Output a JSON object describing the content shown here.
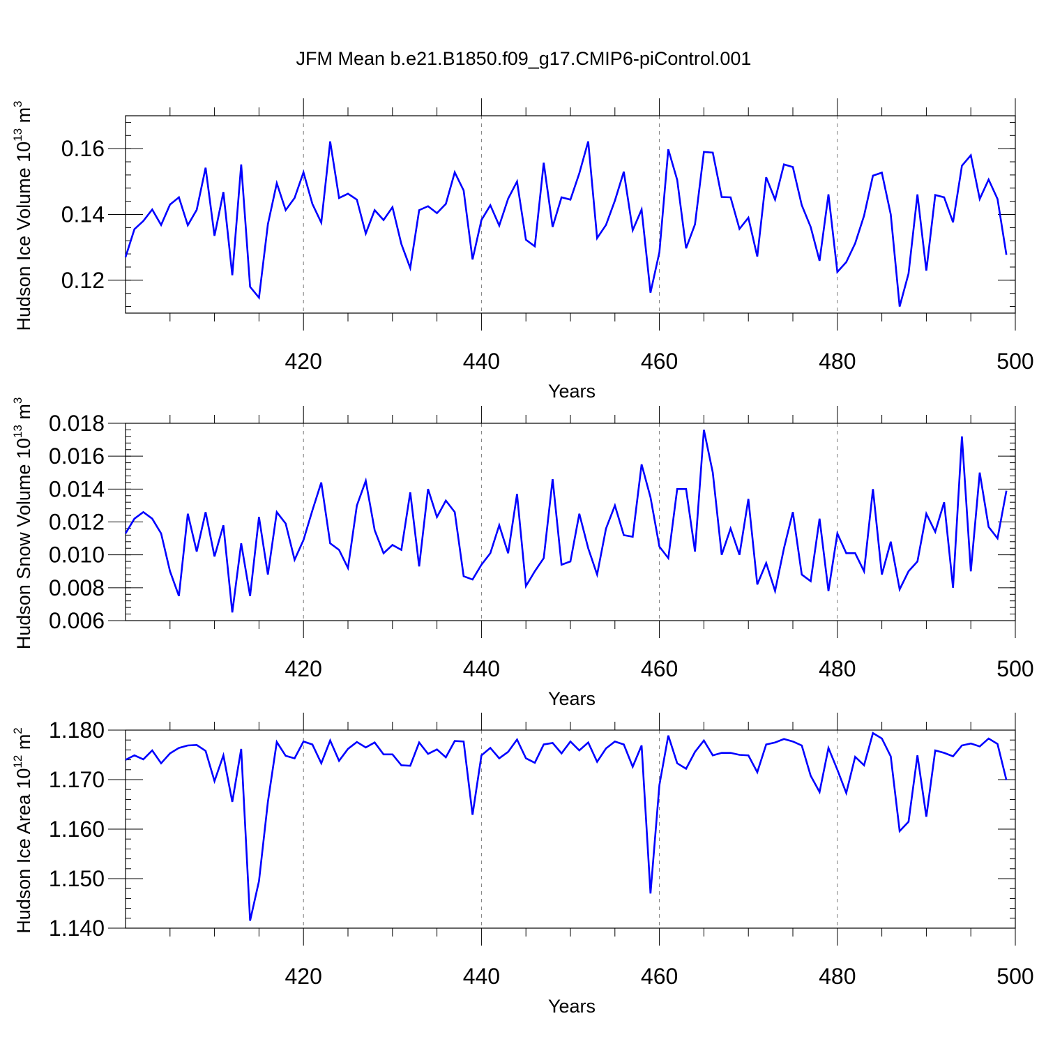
{
  "title": "JFM Mean b.e21.B1850.f09_g17.CMIP6-piControl.001",
  "colors": {
    "series": "#0000ff",
    "axis": "#000000",
    "grid": "#7a7a7a",
    "background": "#ffffff"
  },
  "chart_data": [
    {
      "type": "line",
      "ylabel": "Hudson Ice Volume 10",
      "ylabel_exp": "13",
      "ylabel_unit": " m",
      "ylabel_unit_exp": "3",
      "xlabel": "Years",
      "xlim": [
        400,
        500
      ],
      "ylim": [
        0.11,
        0.17
      ],
      "yticks": [
        0.12,
        0.14,
        0.16
      ],
      "ytick_labels": [
        "0.12",
        "0.14",
        "0.16"
      ],
      "xticks": [
        420,
        440,
        460,
        480,
        500
      ],
      "xtick_labels": [
        "420",
        "440",
        "460",
        "480",
        "500"
      ],
      "grid": "vertical dashed at major x ticks",
      "x_start": 400,
      "values": [
        0.127,
        0.1355,
        0.138,
        0.1415,
        0.1368,
        0.143,
        0.1452,
        0.1367,
        0.1414,
        0.1542,
        0.1335,
        0.1468,
        0.1215,
        0.1552,
        0.118,
        0.1147,
        0.137,
        0.1495,
        0.1413,
        0.145,
        0.1528,
        0.1432,
        0.1375,
        0.1622,
        0.145,
        0.1463,
        0.1445,
        0.1342,
        0.1413,
        0.1383,
        0.1422,
        0.131,
        0.1237,
        0.1413,
        0.1425,
        0.1404,
        0.1432,
        0.1528,
        0.1473,
        0.1263,
        0.1383,
        0.1428,
        0.1366,
        0.1448,
        0.15,
        0.1323,
        0.1303,
        0.1557,
        0.1362,
        0.1452,
        0.1445,
        0.1525,
        0.1622,
        0.1328,
        0.1368,
        0.1442,
        0.153,
        0.1352,
        0.1415,
        0.1162,
        0.1285,
        0.1598,
        0.1505,
        0.1297,
        0.137,
        0.159,
        0.1588,
        0.1453,
        0.1452,
        0.1356,
        0.139,
        0.1272,
        0.1513,
        0.1445,
        0.1552,
        0.1544,
        0.1428,
        0.1362,
        0.1259,
        0.1461,
        0.1225,
        0.1255,
        0.1312,
        0.1396,
        0.1518,
        0.1527,
        0.14,
        0.112,
        0.122,
        0.1461,
        0.1229,
        0.1459,
        0.1452,
        0.1376,
        0.1548,
        0.158,
        0.1447,
        0.1506,
        0.1447,
        0.1277
      ]
    },
    {
      "type": "line",
      "ylabel": "Hudson Snow Volume 10",
      "ylabel_exp": "13",
      "ylabel_unit": " m",
      "ylabel_unit_exp": "3",
      "xlabel": "Years",
      "xlim": [
        400,
        500
      ],
      "ylim": [
        0.006,
        0.018
      ],
      "yticks": [
        0.006,
        0.008,
        0.01,
        0.012,
        0.014,
        0.016,
        0.018
      ],
      "ytick_labels": [
        "0.006",
        "0.008",
        "0.010",
        "0.012",
        "0.014",
        "0.016",
        "0.018"
      ],
      "xticks": [
        420,
        440,
        460,
        480,
        500
      ],
      "xtick_labels": [
        "420",
        "440",
        "460",
        "480",
        "500"
      ],
      "grid": "vertical dashed at major x ticks",
      "x_start": 400,
      "values": [
        0.0113,
        0.0122,
        0.0126,
        0.0122,
        0.0113,
        0.009,
        0.0075,
        0.0125,
        0.0102,
        0.0126,
        0.0099,
        0.0118,
        0.0065,
        0.0107,
        0.0075,
        0.0123,
        0.0088,
        0.0126,
        0.0119,
        0.0097,
        0.0109,
        0.0127,
        0.0144,
        0.0107,
        0.0103,
        0.0092,
        0.013,
        0.0145,
        0.0115,
        0.0101,
        0.0106,
        0.0103,
        0.0138,
        0.0093,
        0.014,
        0.0123,
        0.0133,
        0.0126,
        0.0087,
        0.0085,
        0.0094,
        0.0101,
        0.0118,
        0.0101,
        0.0137,
        0.0081,
        0.009,
        0.0098,
        0.0146,
        0.0094,
        0.0096,
        0.0125,
        0.0104,
        0.0088,
        0.0116,
        0.013,
        0.0112,
        0.0111,
        0.0155,
        0.0135,
        0.0105,
        0.0098,
        0.014,
        0.014,
        0.0102,
        0.0176,
        0.015,
        0.01,
        0.0116,
        0.01,
        0.0134,
        0.0082,
        0.0095,
        0.0078,
        0.0104,
        0.0126,
        0.0088,
        0.0084,
        0.0122,
        0.0078,
        0.0113,
        0.0101,
        0.0101,
        0.009,
        0.014,
        0.0088,
        0.0108,
        0.0079,
        0.009,
        0.0096,
        0.0125,
        0.0114,
        0.0132,
        0.008,
        0.0172,
        0.009,
        0.015,
        0.0117,
        0.011,
        0.0139
      ]
    },
    {
      "type": "line",
      "ylabel": "Hudson Ice Area 10",
      "ylabel_exp": "12",
      "ylabel_unit": " m",
      "ylabel_unit_exp": "2",
      "xlabel": "Years",
      "xlim": [
        400,
        500
      ],
      "ylim": [
        1.14,
        1.18
      ],
      "yticks": [
        1.14,
        1.15,
        1.16,
        1.17,
        1.18
      ],
      "ytick_labels": [
        "1.140",
        "1.150",
        "1.160",
        "1.170",
        "1.180"
      ],
      "xticks": [
        420,
        440,
        460,
        480,
        500
      ],
      "xtick_labels": [
        "420",
        "440",
        "460",
        "480",
        "500"
      ],
      "grid": "vertical dashed at major x ticks",
      "x_start": 400,
      "values": [
        1.174,
        1.1749,
        1.1741,
        1.1759,
        1.1733,
        1.1753,
        1.1764,
        1.1769,
        1.177,
        1.1758,
        1.1697,
        1.1749,
        1.1655,
        1.1762,
        1.1415,
        1.1495,
        1.1655,
        1.1776,
        1.1748,
        1.1743,
        1.1777,
        1.1771,
        1.1733,
        1.1779,
        1.1738,
        1.1762,
        1.1776,
        1.1765,
        1.1775,
        1.1751,
        1.1751,
        1.1729,
        1.1728,
        1.1775,
        1.1752,
        1.1761,
        1.1745,
        1.1778,
        1.1777,
        1.1629,
        1.1749,
        1.1764,
        1.1743,
        1.1756,
        1.1781,
        1.1743,
        1.1734,
        1.1771,
        1.1774,
        1.1753,
        1.1777,
        1.1759,
        1.1775,
        1.1736,
        1.1763,
        1.1777,
        1.1771,
        1.1726,
        1.1769,
        1.147,
        1.1689,
        1.1789,
        1.1733,
        1.1722,
        1.1756,
        1.1779,
        1.1749,
        1.1754,
        1.1754,
        1.175,
        1.1749,
        1.1715,
        1.1771,
        1.1775,
        1.1782,
        1.1777,
        1.1769,
        1.1708,
        1.1675,
        1.1764,
        1.172,
        1.1673,
        1.1746,
        1.1729,
        1.1794,
        1.1783,
        1.1747,
        1.1596,
        1.1615,
        1.1749,
        1.1625,
        1.1759,
        1.1754,
        1.1747,
        1.1769,
        1.1773,
        1.1767,
        1.1783,
        1.1772,
        1.1699
      ]
    }
  ]
}
